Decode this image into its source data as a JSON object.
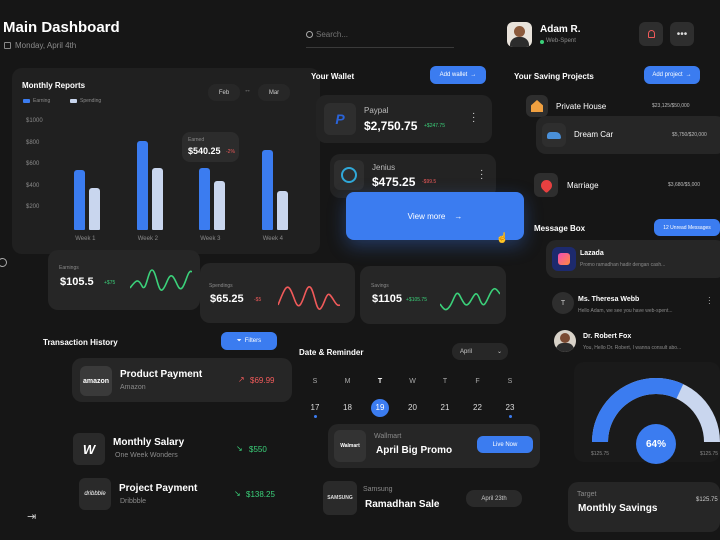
{
  "header": {
    "title": "Main Dashboard",
    "date": "Monday, April 4th"
  },
  "search": {
    "placeholder": "Search..."
  },
  "user": {
    "name": "Adam R.",
    "status": "Web-Spent"
  },
  "monthly_reports": {
    "title": "Monthly Reports",
    "legend_earning": "Earning",
    "legend_spending": "Spending",
    "range_from": "Feb",
    "range_sep": "↔",
    "range_to": "Mar",
    "tooltip_label": "Earned",
    "tooltip_value": "$540.25",
    "tooltip_delta": "-2%"
  },
  "chart_data": {
    "type": "bar",
    "categories": [
      "Week 1",
      "Week 2",
      "Week 3",
      "Week 4"
    ],
    "y_ticks": [
      "$1000",
      "$800",
      "$600",
      "$400",
      "$200"
    ],
    "ylim": [
      0,
      1000
    ],
    "series": [
      {
        "name": "Earning",
        "values": [
          560,
          820,
          570,
          740
        ],
        "color": "#3b7cf0"
      },
      {
        "name": "Spending",
        "values": [
          390,
          570,
          450,
          360
        ],
        "color": "#c9d6ee"
      }
    ],
    "title": "Monthly Reports",
    "xlabel": "",
    "ylabel": ""
  },
  "stats": {
    "earnings": {
      "label": "Earnings",
      "value": "$105.5",
      "delta": "+$75"
    },
    "spendings": {
      "label": "Spendings",
      "value": "$65.25",
      "delta": "-$5"
    },
    "savings": {
      "label": "Savings",
      "value": "$1105",
      "delta": "+$105.75"
    }
  },
  "wallet": {
    "title": "Your Wallet",
    "add_label": "Add wallet",
    "items": [
      {
        "name": "Paypal",
        "amount": "$2,750.75",
        "delta": "+$247.75"
      },
      {
        "name": "Jenius",
        "amount": "$475.25",
        "delta": "-$99.5"
      }
    ],
    "view_more": "View more"
  },
  "projects": {
    "title": "Your Saving Projects",
    "add_label": "Add project",
    "items": [
      {
        "name": "Private House",
        "value": "$23,125/$50,000"
      },
      {
        "name": "Dream Car",
        "value": "$5,750/$20,000"
      },
      {
        "name": "Marriage",
        "value": "$3,680/$5,000"
      }
    ]
  },
  "messages": {
    "title": "Message Box",
    "unread_label": "12 Unread Messages",
    "items": [
      {
        "name": "Lazada",
        "preview": "Promo ramadhan hadir dengan cash..."
      },
      {
        "name": "Ms. Theresa Webb",
        "preview": "Hello Adam, we see you have web-spent..."
      },
      {
        "name": "Dr. Robert Fox",
        "preview": "You, Hello Dr. Robert, I wanna consult abo..."
      }
    ]
  },
  "donut": {
    "percent": "64%",
    "left_label": "$125.75",
    "right_label": "$125.75",
    "fraction": 0.64
  },
  "target": {
    "label": "Target",
    "name": "Monthly Savings",
    "value": "$125.75"
  },
  "transactions": {
    "title": "Transaction History",
    "filter_label": "Filters",
    "items": [
      {
        "logo": "amazon",
        "title": "Product Payment",
        "sub": "Amazon",
        "amount": "$69.99",
        "dir": "↗"
      },
      {
        "logo": "W",
        "title": "Monthly Salary",
        "sub": "One Week Wonders",
        "amount": "$550",
        "dir": "↘"
      },
      {
        "logo": "dribbble",
        "title": "Project Payment",
        "sub": "Dribbble",
        "amount": "$138.25",
        "dir": "↘"
      }
    ]
  },
  "calendar": {
    "title": "Date & Reminder",
    "month": "April",
    "days": [
      "S",
      "M",
      "T",
      "W",
      "T",
      "F",
      "S"
    ],
    "dates": [
      "17",
      "18",
      "19",
      "20",
      "21",
      "22",
      "23"
    ],
    "selected_index": 2
  },
  "reminders": [
    {
      "logo": "Walmart",
      "brand": "Wallmart",
      "title": "April Big Promo",
      "action": "Live Now"
    },
    {
      "logo": "SAMSUNG",
      "brand": "Samsung",
      "title": "Ramadhan Sale",
      "action": "April 23th"
    }
  ]
}
